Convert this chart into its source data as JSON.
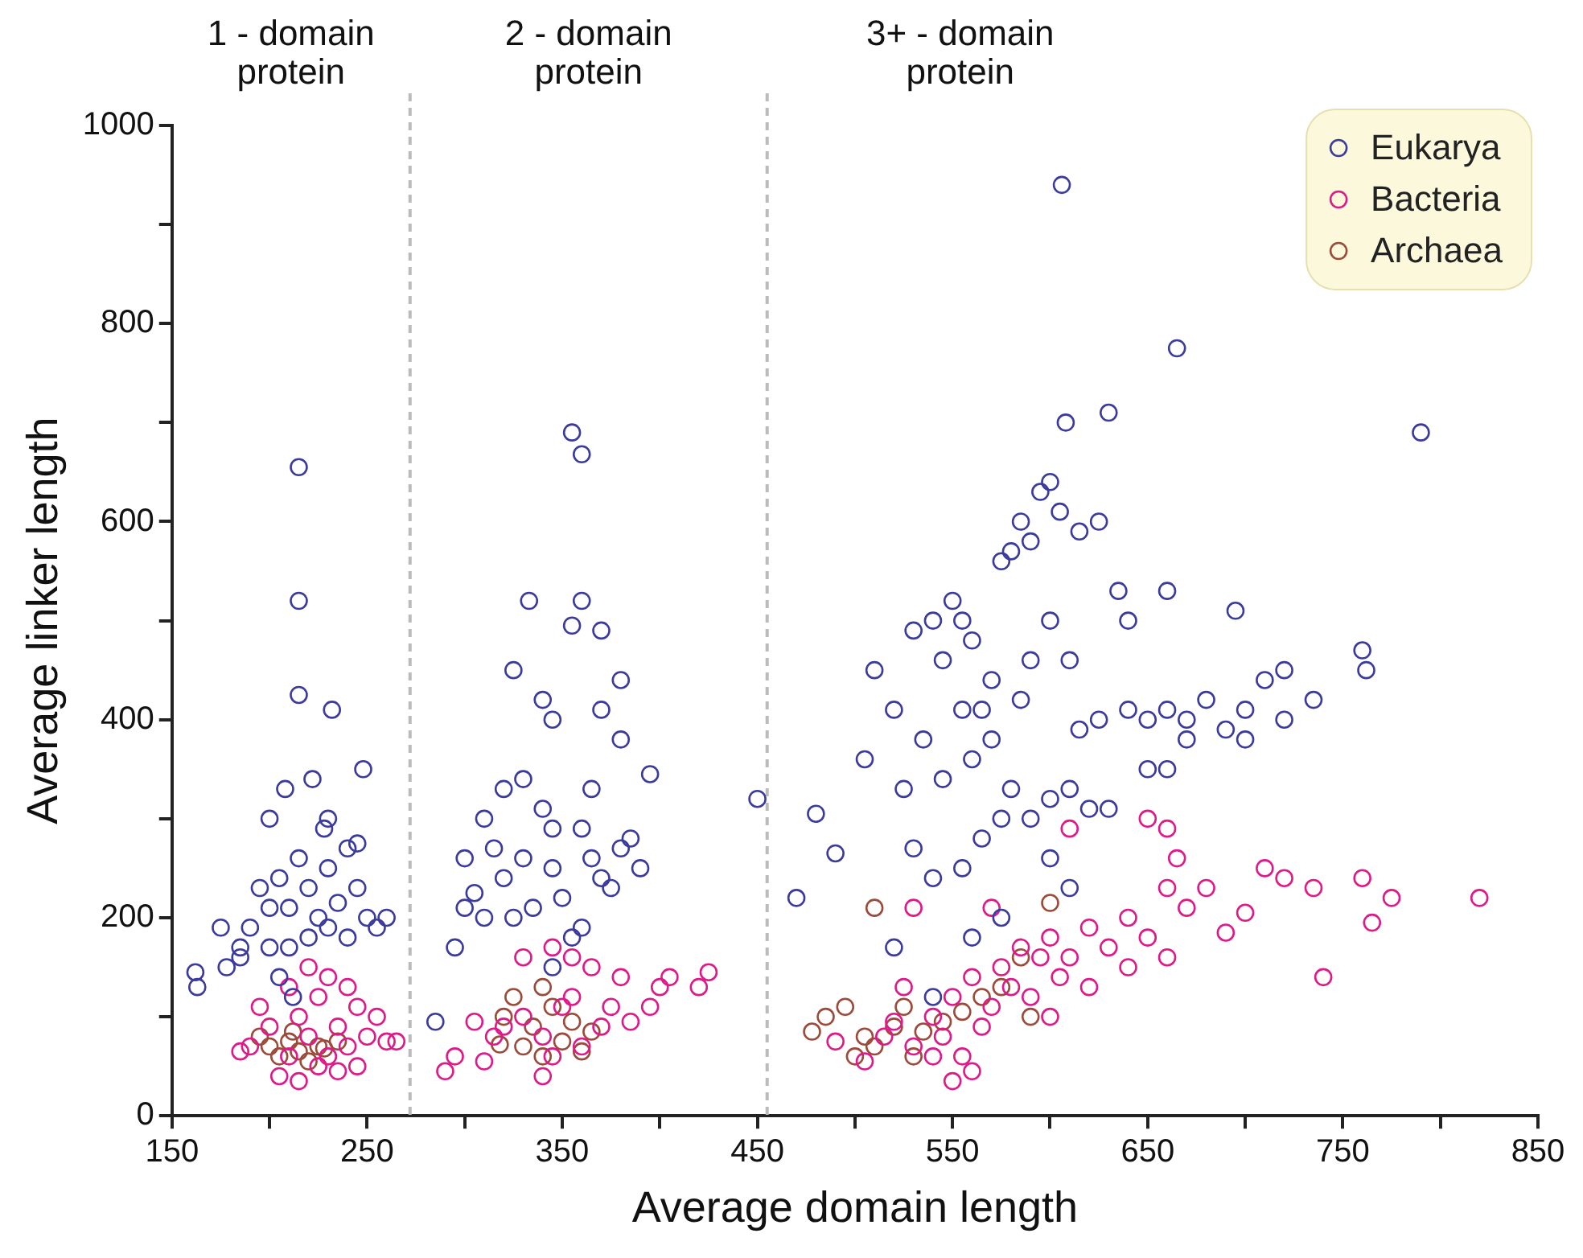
{
  "chart_data": {
    "type": "scatter",
    "xlabel": "Average domain length",
    "ylabel": "Average linker length",
    "marker": "circle",
    "legend": "top right",
    "xlim": [
      150,
      850
    ],
    "ylim": [
      0,
      1000
    ],
    "xticks": [
      150,
      {
        "value": 200,
        "label": null
      },
      250,
      {
        "value": 300,
        "label": null
      },
      350,
      {
        "value": 400,
        "label": null
      },
      450,
      {
        "value": 500,
        "label": null
      },
      550,
      {
        "value": 600,
        "label": null
      },
      650,
      {
        "value": 700,
        "label": null
      },
      750,
      {
        "value": 800,
        "label": null
      },
      850
    ],
    "yticks": [
      0,
      {
        "value": 100,
        "label": null
      },
      200,
      {
        "value": 300,
        "label": null
      },
      400,
      {
        "value": 500,
        "label": null
      },
      600,
      {
        "value": 700,
        "label": null
      },
      800,
      {
        "value": 900,
        "label": null
      },
      1000
    ],
    "ref_lines": [
      {
        "axis": "x",
        "value": 272,
        "color": "#bbbbbb",
        "line_style": "dashed"
      },
      {
        "axis": "x",
        "value": 455,
        "color": "#bbbbbb",
        "line_style": "dashed"
      }
    ],
    "annotations": [
      "1 - domain protein",
      "2 - domain protein",
      "3+ - domain protein"
    ],
    "series": [
      {
        "name": "Eukarya",
        "color": "#3b3b9e",
        "x": [
          215,
          215,
          215,
          232,
          248,
          222,
          208,
          200,
          162,
          163,
          185,
          200,
          190,
          195,
          205,
          210,
          215,
          220,
          225,
          230,
          235,
          240,
          245,
          250,
          255,
          200,
          210,
          220,
          230,
          185,
          178,
          175,
          240,
          260,
          228,
          245,
          205,
          212,
          230,
          355,
          360,
          333,
          360,
          355,
          370,
          380,
          325,
          340,
          370,
          345,
          395,
          300,
          305,
          295,
          285,
          450,
          320,
          330,
          310,
          340,
          315,
          330,
          345,
          360,
          365,
          370,
          380,
          375,
          350,
          335,
          320,
          310,
          325,
          355,
          345,
          360,
          390,
          385,
          345,
          365,
          380,
          300,
          606,
          665,
          630,
          608,
          790,
          470,
          480,
          490,
          505,
          510,
          520,
          525,
          530,
          540,
          550,
          555,
          560,
          565,
          570,
          575,
          580,
          585,
          590,
          595,
          600,
          605,
          615,
          625,
          635,
          640,
          600,
          610,
          590,
          585,
          570,
          560,
          545,
          535,
          530,
          540,
          555,
          565,
          575,
          590,
          600,
          610,
          620,
          630,
          615,
          625,
          640,
          650,
          660,
          670,
          680,
          690,
          700,
          710,
          720,
          760,
          762,
          695,
          660,
          650,
          660,
          670,
          600,
          610,
          575,
          560,
          520,
          540,
          735,
          700,
          720,
          580,
          555,
          545
        ],
        "values": [
          655,
          520,
          425,
          410,
          350,
          340,
          330,
          300,
          145,
          130,
          160,
          210,
          190,
          230,
          240,
          210,
          260,
          230,
          200,
          250,
          215,
          270,
          230,
          200,
          190,
          170,
          170,
          180,
          190,
          170,
          150,
          190,
          180,
          200,
          290,
          275,
          140,
          120,
          300,
          690,
          668,
          520,
          520,
          495,
          490,
          440,
          450,
          420,
          410,
          400,
          345,
          260,
          225,
          170,
          95,
          320,
          330,
          340,
          300,
          310,
          270,
          260,
          250,
          290,
          260,
          240,
          270,
          230,
          220,
          210,
          240,
          200,
          200,
          180,
          150,
          190,
          250,
          280,
          290,
          330,
          380,
          210,
          940,
          775,
          710,
          700,
          690,
          220,
          305,
          265,
          360,
          450,
          410,
          330,
          490,
          500,
          520,
          500,
          480,
          410,
          440,
          560,
          570,
          600,
          580,
          630,
          640,
          610,
          590,
          600,
          530,
          500,
          500,
          460,
          460,
          420,
          380,
          360,
          340,
          380,
          270,
          240,
          250,
          280,
          300,
          300,
          320,
          330,
          310,
          310,
          390,
          400,
          410,
          400,
          410,
          400,
          420,
          390,
          410,
          440,
          450,
          470,
          450,
          510,
          530,
          350,
          350,
          380,
          260,
          230,
          200,
          180,
          170,
          120,
          420,
          380,
          400,
          330,
          410,
          460
        ]
      },
      {
        "name": "Bacteria",
        "color": "#e0198a",
        "x": [
          190,
          200,
          210,
          215,
          220,
          225,
          230,
          235,
          240,
          245,
          250,
          255,
          260,
          205,
          215,
          235,
          245,
          195,
          210,
          230,
          220,
          185,
          265,
          225,
          240,
          290,
          295,
          310,
          320,
          330,
          340,
          345,
          350,
          355,
          360,
          370,
          375,
          380,
          385,
          395,
          400,
          405,
          420,
          425,
          340,
          330,
          345,
          355,
          365,
          315,
          305,
          490,
          505,
          515,
          520,
          525,
          530,
          540,
          545,
          550,
          555,
          560,
          565,
          570,
          575,
          580,
          585,
          590,
          595,
          600,
          605,
          610,
          620,
          630,
          640,
          650,
          660,
          665,
          670,
          680,
          690,
          700,
          710,
          720,
          735,
          760,
          765,
          775,
          820,
          740,
          660,
          650,
          560,
          550,
          540,
          600,
          620,
          640,
          660,
          610,
          570,
          530
        ],
        "values": [
          70,
          90,
          60,
          100,
          80,
          120,
          60,
          90,
          70,
          110,
          80,
          100,
          75,
          40,
          35,
          45,
          50,
          110,
          130,
          140,
          150,
          65,
          75,
          50,
          130,
          45,
          60,
          55,
          90,
          100,
          80,
          60,
          110,
          120,
          70,
          90,
          110,
          140,
          95,
          110,
          130,
          140,
          130,
          145,
          40,
          160,
          170,
          160,
          150,
          80,
          95,
          75,
          55,
          80,
          95,
          130,
          70,
          100,
          80,
          120,
          60,
          140,
          90,
          110,
          150,
          130,
          170,
          120,
          160,
          180,
          140,
          160,
          190,
          170,
          200,
          180,
          230,
          260,
          210,
          230,
          185,
          205,
          250,
          240,
          230,
          240,
          195,
          220,
          220,
          140,
          290,
          300,
          45,
          35,
          60,
          100,
          130,
          150,
          160,
          290,
          210,
          210
        ]
      },
      {
        "name": "Archaea",
        "color": "#9c4a3a",
        "x": [
          200,
          205,
          210,
          215,
          220,
          225,
          228,
          235,
          195,
          212,
          318,
          320,
          330,
          335,
          340,
          345,
          350,
          355,
          360,
          365,
          325,
          340,
          478,
          485,
          495,
          505,
          510,
          520,
          525,
          535,
          545,
          555,
          565,
          575,
          585,
          510,
          600,
          590,
          500,
          530
        ],
        "values": [
          70,
          60,
          75,
          65,
          55,
          70,
          68,
          75,
          80,
          85,
          72,
          100,
          70,
          90,
          60,
          110,
          75,
          95,
          65,
          85,
          120,
          130,
          85,
          100,
          110,
          80,
          70,
          90,
          110,
          85,
          95,
          105,
          120,
          130,
          160,
          210,
          215,
          100,
          60,
          60
        ]
      }
    ]
  }
}
